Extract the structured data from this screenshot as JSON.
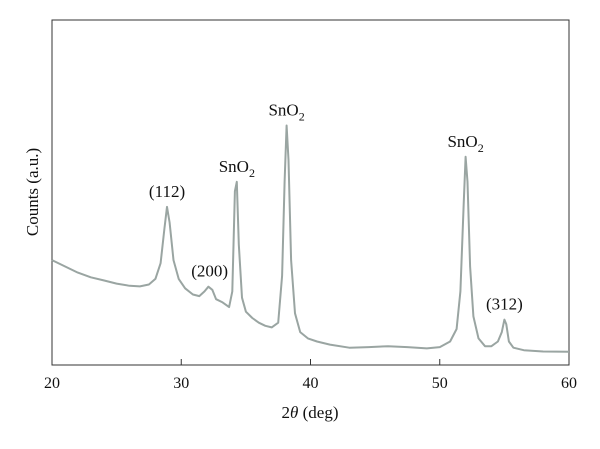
{
  "chart_data": {
    "type": "line",
    "title": "",
    "xlabel": {
      "prefix": "2",
      "italic": "θ",
      "suffix": " (deg)"
    },
    "ylabel": "Counts (a.u.)",
    "xlim": [
      20,
      60
    ],
    "xticks": [
      20,
      30,
      40,
      50,
      60
    ],
    "yticks_shown": false,
    "grid": false,
    "legend": "none",
    "line_color": "#9aa5a2",
    "series": [
      {
        "points": [
          [
            20.0,
            0.3
          ],
          [
            21.0,
            0.28
          ],
          [
            22.0,
            0.26
          ],
          [
            23.0,
            0.245
          ],
          [
            24.0,
            0.235
          ],
          [
            25.0,
            0.225
          ],
          [
            26.0,
            0.218
          ],
          [
            26.8,
            0.216
          ],
          [
            27.5,
            0.222
          ],
          [
            28.0,
            0.24
          ],
          [
            28.4,
            0.29
          ],
          [
            28.7,
            0.4
          ],
          [
            28.9,
            0.47
          ],
          [
            29.1,
            0.42
          ],
          [
            29.4,
            0.3
          ],
          [
            29.8,
            0.24
          ],
          [
            30.3,
            0.21
          ],
          [
            30.9,
            0.19
          ],
          [
            31.4,
            0.185
          ],
          [
            31.8,
            0.2
          ],
          [
            32.1,
            0.215
          ],
          [
            32.4,
            0.205
          ],
          [
            32.7,
            0.175
          ],
          [
            33.2,
            0.165
          ],
          [
            33.7,
            0.15
          ],
          [
            33.95,
            0.2
          ],
          [
            34.15,
            0.52
          ],
          [
            34.3,
            0.55
          ],
          [
            34.45,
            0.35
          ],
          [
            34.7,
            0.18
          ],
          [
            35.0,
            0.135
          ],
          [
            35.5,
            0.115
          ],
          [
            36.0,
            0.1
          ],
          [
            36.5,
            0.09
          ],
          [
            37.0,
            0.085
          ],
          [
            37.5,
            0.1
          ],
          [
            37.8,
            0.25
          ],
          [
            38.0,
            0.55
          ],
          [
            38.15,
            0.73
          ],
          [
            38.3,
            0.62
          ],
          [
            38.5,
            0.3
          ],
          [
            38.8,
            0.13
          ],
          [
            39.2,
            0.07
          ],
          [
            39.8,
            0.05
          ],
          [
            40.5,
            0.04
          ],
          [
            41.5,
            0.03
          ],
          [
            43.0,
            0.02
          ],
          [
            44.5,
            0.022
          ],
          [
            46.0,
            0.025
          ],
          [
            47.5,
            0.022
          ],
          [
            49.0,
            0.018
          ],
          [
            50.0,
            0.022
          ],
          [
            50.8,
            0.04
          ],
          [
            51.3,
            0.08
          ],
          [
            51.6,
            0.2
          ],
          [
            51.85,
            0.48
          ],
          [
            52.0,
            0.63
          ],
          [
            52.15,
            0.55
          ],
          [
            52.35,
            0.28
          ],
          [
            52.6,
            0.12
          ],
          [
            53.0,
            0.05
          ],
          [
            53.5,
            0.025
          ],
          [
            54.0,
            0.025
          ],
          [
            54.5,
            0.04
          ],
          [
            54.8,
            0.07
          ],
          [
            55.0,
            0.11
          ],
          [
            55.15,
            0.095
          ],
          [
            55.35,
            0.04
          ],
          [
            55.7,
            0.02
          ],
          [
            56.5,
            0.012
          ],
          [
            58.0,
            0.008
          ],
          [
            60.0,
            0.007
          ]
        ]
      }
    ],
    "annotations": [
      {
        "main": "(112)",
        "sub": "",
        "x": 28.9,
        "y": 0.47
      },
      {
        "main": "(200)",
        "sub": "",
        "x": 32.2,
        "y": 0.215
      },
      {
        "main": "SnO",
        "sub": "2",
        "x": 34.3,
        "y": 0.55
      },
      {
        "main": "SnO",
        "sub": "2",
        "x": 38.15,
        "y": 0.73
      },
      {
        "main": "SnO",
        "sub": "2",
        "x": 52.0,
        "y": 0.63
      },
      {
        "main": "(312)",
        "sub": "",
        "x": 55.0,
        "y": 0.11
      }
    ]
  }
}
